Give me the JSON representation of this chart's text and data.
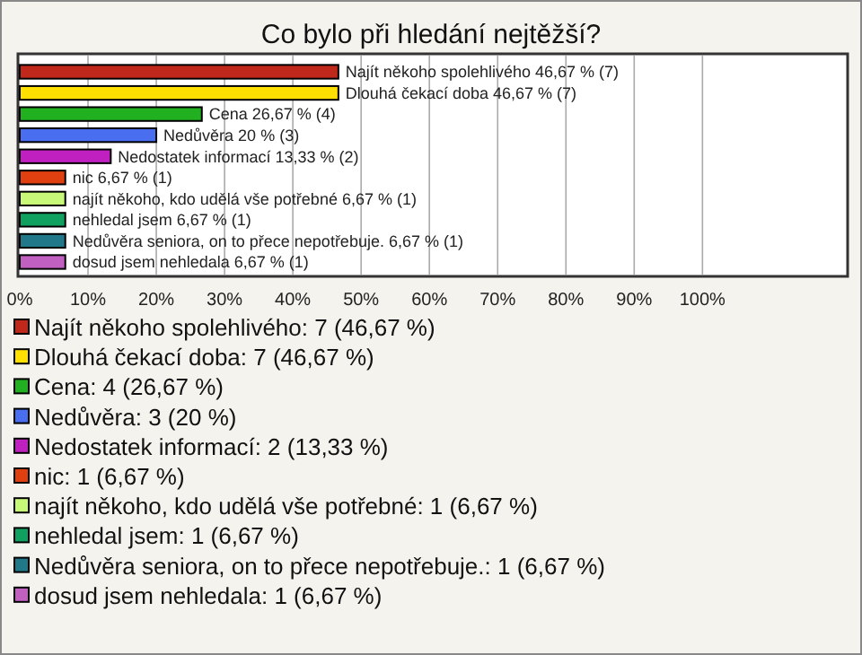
{
  "chart_data": {
    "type": "bar",
    "orientation": "horizontal",
    "title": "Co bylo při hledání nejtěžší?",
    "categories": [
      null,
      null,
      null,
      null,
      null,
      null,
      null,
      null,
      null,
      null
    ],
    "series": [
      {
        "name": "Najít někoho spolehlivého: 7 (46,67 %)",
        "color": "#c0281c",
        "values": [
          46.67,
          null,
          null,
          null,
          null,
          null,
          null,
          null,
          null,
          null
        ],
        "value_labels": [
          "Najít někoho spolehlivého 46,67 % (7)",
          null,
          null,
          null,
          null,
          null,
          null,
          null,
          null,
          null
        ]
      },
      {
        "name": "Dlouhá čekací doba: 7 (46,67 %)",
        "color": "#ffe000",
        "values": [
          null,
          46.67,
          null,
          null,
          null,
          null,
          null,
          null,
          null,
          null
        ],
        "value_labels": [
          null,
          "Dlouhá čekací doba 46,67 % (7)",
          null,
          null,
          null,
          null,
          null,
          null,
          null,
          null
        ]
      },
      {
        "name": "Cena: 4 (26,67 %)",
        "color": "#20b020",
        "values": [
          null,
          null,
          26.67,
          null,
          null,
          null,
          null,
          null,
          null,
          null
        ],
        "value_labels": [
          null,
          null,
          "Cena 26,67 % (4)",
          null,
          null,
          null,
          null,
          null,
          null,
          null
        ]
      },
      {
        "name": "Nedůvěra: 3 (20 %)",
        "color": "#4a6ef0",
        "values": [
          null,
          null,
          null,
          20,
          null,
          null,
          null,
          null,
          null,
          null
        ],
        "value_labels": [
          null,
          null,
          null,
          "Nedůvěra 20 % (3)",
          null,
          null,
          null,
          null,
          null,
          null
        ]
      },
      {
        "name": "Nedostatek informací: 2 (13,33 %)",
        "color": "#c020c0",
        "values": [
          null,
          null,
          null,
          null,
          13.33,
          null,
          null,
          null,
          null,
          null
        ],
        "value_labels": [
          null,
          null,
          null,
          null,
          "Nedostatek informací 13,33 % (2)",
          null,
          null,
          null,
          null,
          null
        ]
      },
      {
        "name": "nic: 1 (6,67 %)",
        "color": "#e04010",
        "values": [
          null,
          null,
          null,
          null,
          null,
          6.67,
          null,
          null,
          null,
          null
        ],
        "value_labels": [
          null,
          null,
          null,
          null,
          null,
          "nic 6,67 % (1)",
          null,
          null,
          null,
          null
        ]
      },
      {
        "name": "najít někoho, kdo udělá vše potřebné: 1 (6,67 %)",
        "color": "#c8f878",
        "values": [
          null,
          null,
          null,
          null,
          null,
          null,
          6.67,
          null,
          null,
          null
        ],
        "value_labels": [
          null,
          null,
          null,
          null,
          null,
          null,
          "najít někoho, kdo udělá vše potřebné 6,67 % (1)",
          null,
          null,
          null
        ]
      },
      {
        "name": "nehledal jsem: 1 (6,67 %)",
        "color": "#10a060",
        "values": [
          null,
          null,
          null,
          null,
          null,
          null,
          null,
          6.67,
          null,
          null
        ],
        "value_labels": [
          null,
          null,
          null,
          null,
          null,
          null,
          null,
          "nehledal jsem 6,67 % (1)",
          null,
          null
        ]
      },
      {
        "name": "Nedůvěra seniora, on to přece nepotřebuje.: 1 (6,67 %)",
        "color": "#207888",
        "values": [
          null,
          null,
          null,
          null,
          null,
          null,
          null,
          null,
          6.67,
          null
        ],
        "value_labels": [
          null,
          null,
          null,
          null,
          null,
          null,
          null,
          null,
          "Nedůvěra seniora, on to přece nepotřebuje. 6,67 % (1)",
          null
        ]
      },
      {
        "name": "dosud jsem nehledala: 1 (6,67 %)",
        "color": "#c060c0",
        "values": [
          null,
          null,
          null,
          null,
          null,
          null,
          null,
          null,
          null,
          6.67
        ],
        "value_labels": [
          null,
          null,
          null,
          null,
          null,
          null,
          null,
          null,
          null,
          "dosud jsem nehledala 6,67 % (1)"
        ]
      }
    ],
    "xlim": [
      0,
      121
    ],
    "xticks": [
      {
        "value": 0,
        "label": "0%"
      },
      {
        "value": 10,
        "label": "10%"
      },
      {
        "value": 20,
        "label": "20%"
      },
      {
        "value": 30,
        "label": "30%"
      },
      {
        "value": 40,
        "label": "40%"
      },
      {
        "value": 50,
        "label": "50%"
      },
      {
        "value": 60,
        "label": "60%"
      },
      {
        "value": 70,
        "label": "70%"
      },
      {
        "value": 80,
        "label": "80%"
      },
      {
        "value": 90,
        "label": "90%"
      },
      {
        "value": 100,
        "label": "100%"
      }
    ],
    "grid": "x",
    "legend": "bottom"
  }
}
